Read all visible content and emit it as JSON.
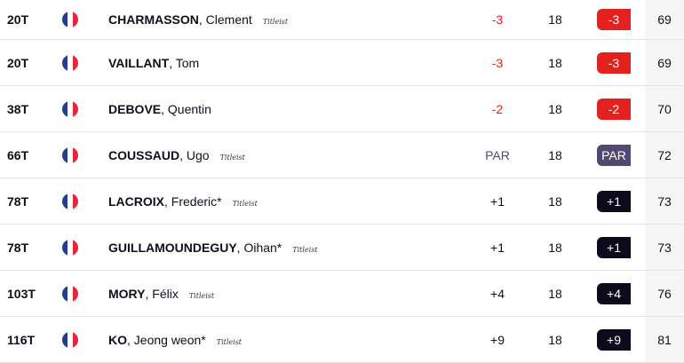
{
  "colors": {
    "under": "#e3211e",
    "par": "#52496e",
    "over": "#0e0a1c"
  },
  "rows": [
    {
      "pos": "20T",
      "country": "France",
      "last": "CHARMASSON",
      "first": ", Clement",
      "brand": "Titleist",
      "topar": "-3",
      "thru": "18",
      "today": "-3",
      "total": "69",
      "status": "under"
    },
    {
      "pos": "20T",
      "country": "France",
      "last": "VAILLANT",
      "first": ", Tom",
      "brand": "",
      "topar": "-3",
      "thru": "18",
      "today": "-3",
      "total": "69",
      "status": "under"
    },
    {
      "pos": "38T",
      "country": "France",
      "last": "DEBOVE",
      "first": ", Quentin",
      "brand": "",
      "topar": "-2",
      "thru": "18",
      "today": "-2",
      "total": "70",
      "status": "under"
    },
    {
      "pos": "66T",
      "country": "France",
      "last": "COUSSAUD",
      "first": ", Ugo",
      "brand": "Titleist",
      "topar": "PAR",
      "thru": "18",
      "today": "PAR",
      "total": "72",
      "status": "par"
    },
    {
      "pos": "78T",
      "country": "France",
      "last": "LACROIX",
      "first": ", Frederic*",
      "brand": "Titleist",
      "topar": "+1",
      "thru": "18",
      "today": "+1",
      "total": "73",
      "status": "over"
    },
    {
      "pos": "78T",
      "country": "France",
      "last": "GUILLAMOUNDEGUY",
      "first": ", Oihan*",
      "brand": "Titleist",
      "topar": "+1",
      "thru": "18",
      "today": "+1",
      "total": "73",
      "status": "over"
    },
    {
      "pos": "103T",
      "country": "France",
      "last": "MORY",
      "first": ", Félix",
      "brand": "Titleist",
      "topar": "+4",
      "thru": "18",
      "today": "+4",
      "total": "76",
      "status": "over"
    },
    {
      "pos": "116T",
      "country": "France",
      "last": "KO",
      "first": ", Jeong weon*",
      "brand": "Titleist",
      "topar": "+9",
      "thru": "18",
      "today": "+9",
      "total": "81",
      "status": "over"
    }
  ]
}
